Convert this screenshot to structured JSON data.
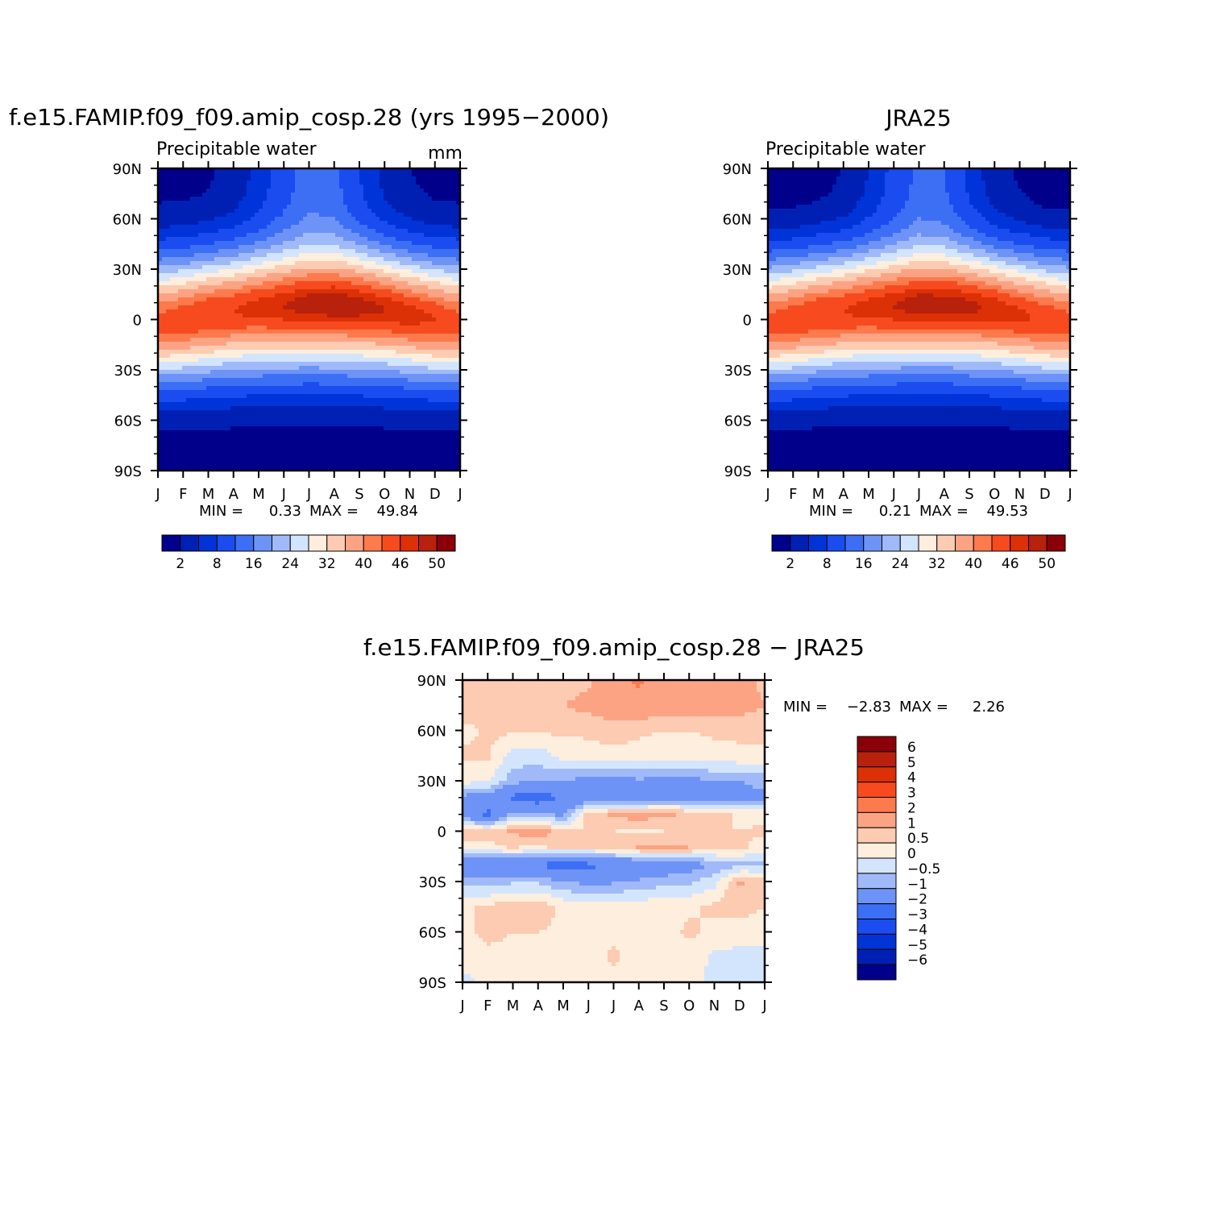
{
  "chart_data": [
    {
      "type": "heatmap",
      "title": "f.e15.FAMIP.f09_f09.amip_cosp.28 (yrs 1995−2000)",
      "left_label": "Precipitable water",
      "right_label": "mm",
      "x_ticks": [
        "J",
        "F",
        "M",
        "A",
        "M",
        "J",
        "J",
        "A",
        "S",
        "O",
        "N",
        "D",
        "J"
      ],
      "y_ticks": [
        "90N",
        "60N",
        "30N",
        "0",
        "30S",
        "60S",
        "90S"
      ],
      "ylim": [
        -90,
        90
      ],
      "min_label": "MIN =",
      "min_value": "0.33",
      "max_label": "MAX =",
      "max_value": "49.84",
      "colorbar_levels": [
        "2",
        "8",
        "16",
        "24",
        "32",
        "40",
        "46",
        "50"
      ],
      "field": {
        "equator_peak_lat": [
          -2,
          0,
          3,
          5,
          7,
          8,
          9,
          9,
          8,
          6,
          3,
          0,
          -2
        ],
        "peak_value": [
          44,
          45,
          46,
          46,
          47,
          48,
          49,
          49.5,
          49,
          48,
          47,
          46,
          44
        ],
        "north_pole_value": [
          1,
          1,
          1.5,
          3,
          6,
          10,
          14,
          13,
          8,
          4,
          2,
          1,
          1
        ],
        "south_pole_value": [
          0.5,
          0.5,
          0.5,
          0.4,
          0.4,
          0.3,
          0.3,
          0.3,
          0.4,
          0.4,
          0.5,
          0.5,
          0.5
        ]
      }
    },
    {
      "type": "heatmap",
      "title": "JRA25",
      "left_label": "Precipitable water",
      "x_ticks": [
        "J",
        "F",
        "M",
        "A",
        "M",
        "J",
        "J",
        "A",
        "S",
        "O",
        "N",
        "D",
        "J"
      ],
      "y_ticks": [
        "90N",
        "60N",
        "30N",
        "0",
        "30S",
        "60S",
        "90S"
      ],
      "ylim": [
        -90,
        90
      ],
      "min_label": "MIN =",
      "min_value": "0.21",
      "max_label": "MAX =",
      "max_value": "49.53",
      "colorbar_levels": [
        "2",
        "8",
        "16",
        "24",
        "32",
        "40",
        "46",
        "50"
      ],
      "field": {
        "equator_peak_lat": [
          -2,
          0,
          3,
          5,
          7,
          8,
          9,
          9,
          8,
          6,
          3,
          0,
          -2
        ],
        "peak_value": [
          44,
          45,
          46,
          46,
          47,
          48,
          49,
          49,
          48.5,
          47.5,
          46.5,
          45.5,
          44
        ],
        "north_pole_value": [
          0.5,
          0.5,
          1,
          2,
          5,
          9,
          13,
          12,
          7,
          3,
          1.5,
          0.5,
          0.5
        ],
        "south_pole_value": [
          0.4,
          0.4,
          0.3,
          0.3,
          0.3,
          0.2,
          0.2,
          0.2,
          0.3,
          0.3,
          0.4,
          0.4,
          0.4
        ]
      }
    },
    {
      "type": "heatmap",
      "title": "f.e15.FAMIP.f09_f09.amip_cosp.28 − JRA25",
      "x_ticks": [
        "J",
        "F",
        "M",
        "A",
        "M",
        "J",
        "J",
        "A",
        "S",
        "O",
        "N",
        "D",
        "J"
      ],
      "y_ticks": [
        "90N",
        "60N",
        "30N",
        "0",
        "30S",
        "60S",
        "90S"
      ],
      "ylim": [
        -90,
        90
      ],
      "min_label": "MIN =",
      "min_value": "−2.83",
      "max_label": "MAX =",
      "max_value": "2.26",
      "colorbar_levels": [
        "6",
        "5",
        "4",
        "3",
        "2",
        "1",
        "0.5",
        "0",
        "−0.5",
        "−1",
        "−2",
        "−3",
        "−4",
        "−5",
        "−6"
      ],
      "field": {
        "lat": [
          90,
          75,
          60,
          45,
          30,
          20,
          10,
          0,
          -10,
          -20,
          -30,
          -45,
          -60,
          -75,
          -90
        ],
        "month_values": [
          [
            0.7,
            0.9,
            0.3,
            0.6,
            0.2,
            -1.2,
            -1.5,
            0.8,
            0.3,
            -1.8,
            -0.7,
            0.4,
            0.3,
            0.3,
            -0.2
          ],
          [
            0.7,
            0.9,
            0.6,
            0.6,
            0.1,
            -1.4,
            -2.2,
            0.6,
            0.4,
            -2.0,
            -0.8,
            0.6,
            0.7,
            0.3,
            0.2
          ],
          [
            0.8,
            0.8,
            0.6,
            -0.2,
            -0.8,
            -2.2,
            -0.8,
            1.1,
            0.5,
            -1.8,
            -0.6,
            0.9,
            0.5,
            0.3,
            0.3
          ],
          [
            0.7,
            0.8,
            0.6,
            -0.3,
            -0.9,
            -2.6,
            -0.8,
            1.4,
            0.4,
            -2.0,
            -0.6,
            0.8,
            0.5,
            0.3,
            0.3
          ],
          [
            0.7,
            1.0,
            0.6,
            0.2,
            -1.0,
            -1.9,
            -1.2,
            0.6,
            0.6,
            -2.6,
            -1.0,
            0.4,
            0.4,
            0.3,
            0.3
          ],
          [
            0.9,
            1.2,
            0.6,
            0.3,
            -1.2,
            -1.6,
            0.8,
            0.5,
            0.5,
            -2.2,
            -1.2,
            0.3,
            0.4,
            0.3,
            0.3
          ],
          [
            1.5,
            1.4,
            0.8,
            0.3,
            -1.3,
            -1.5,
            1.1,
            0.5,
            0.6,
            -2.0,
            -1.1,
            0.3,
            0.4,
            0.6,
            0.3
          ],
          [
            2.2,
            1.5,
            0.6,
            0.3,
            -1.1,
            -1.7,
            1.3,
            0.4,
            1.1,
            -1.9,
            -0.9,
            0.3,
            0.4,
            0.3,
            0.3
          ],
          [
            1.5,
            1.4,
            0.5,
            0.2,
            -1.2,
            -1.3,
            1.1,
            0.5,
            1.2,
            -1.6,
            -0.7,
            0.4,
            0.3,
            0.3,
            0.3
          ],
          [
            1.8,
            1.5,
            0.5,
            0.3,
            -1.2,
            -1.2,
            0.9,
            0.6,
            1.0,
            -1.4,
            -0.6,
            0.4,
            0.6,
            0.3,
            0.3
          ],
          [
            1.5,
            1.3,
            0.6,
            0.3,
            -1.0,
            -1.4,
            0.7,
            0.5,
            0.7,
            -0.9,
            -0.2,
            0.6,
            0.4,
            -0.1,
            -0.2
          ],
          [
            1.4,
            1.3,
            0.6,
            0.4,
            -1.0,
            -1.2,
            0.4,
            0.5,
            0.6,
            -0.7,
            1.1,
            0.7,
            0.3,
            -0.2,
            -0.3
          ],
          [
            0.8,
            1.0,
            0.6,
            0.4,
            -0.8,
            -1.2,
            0.3,
            0.6,
            0.3,
            -0.6,
            0.8,
            0.5,
            0.3,
            -0.2,
            -0.2
          ]
        ]
      }
    }
  ]
}
